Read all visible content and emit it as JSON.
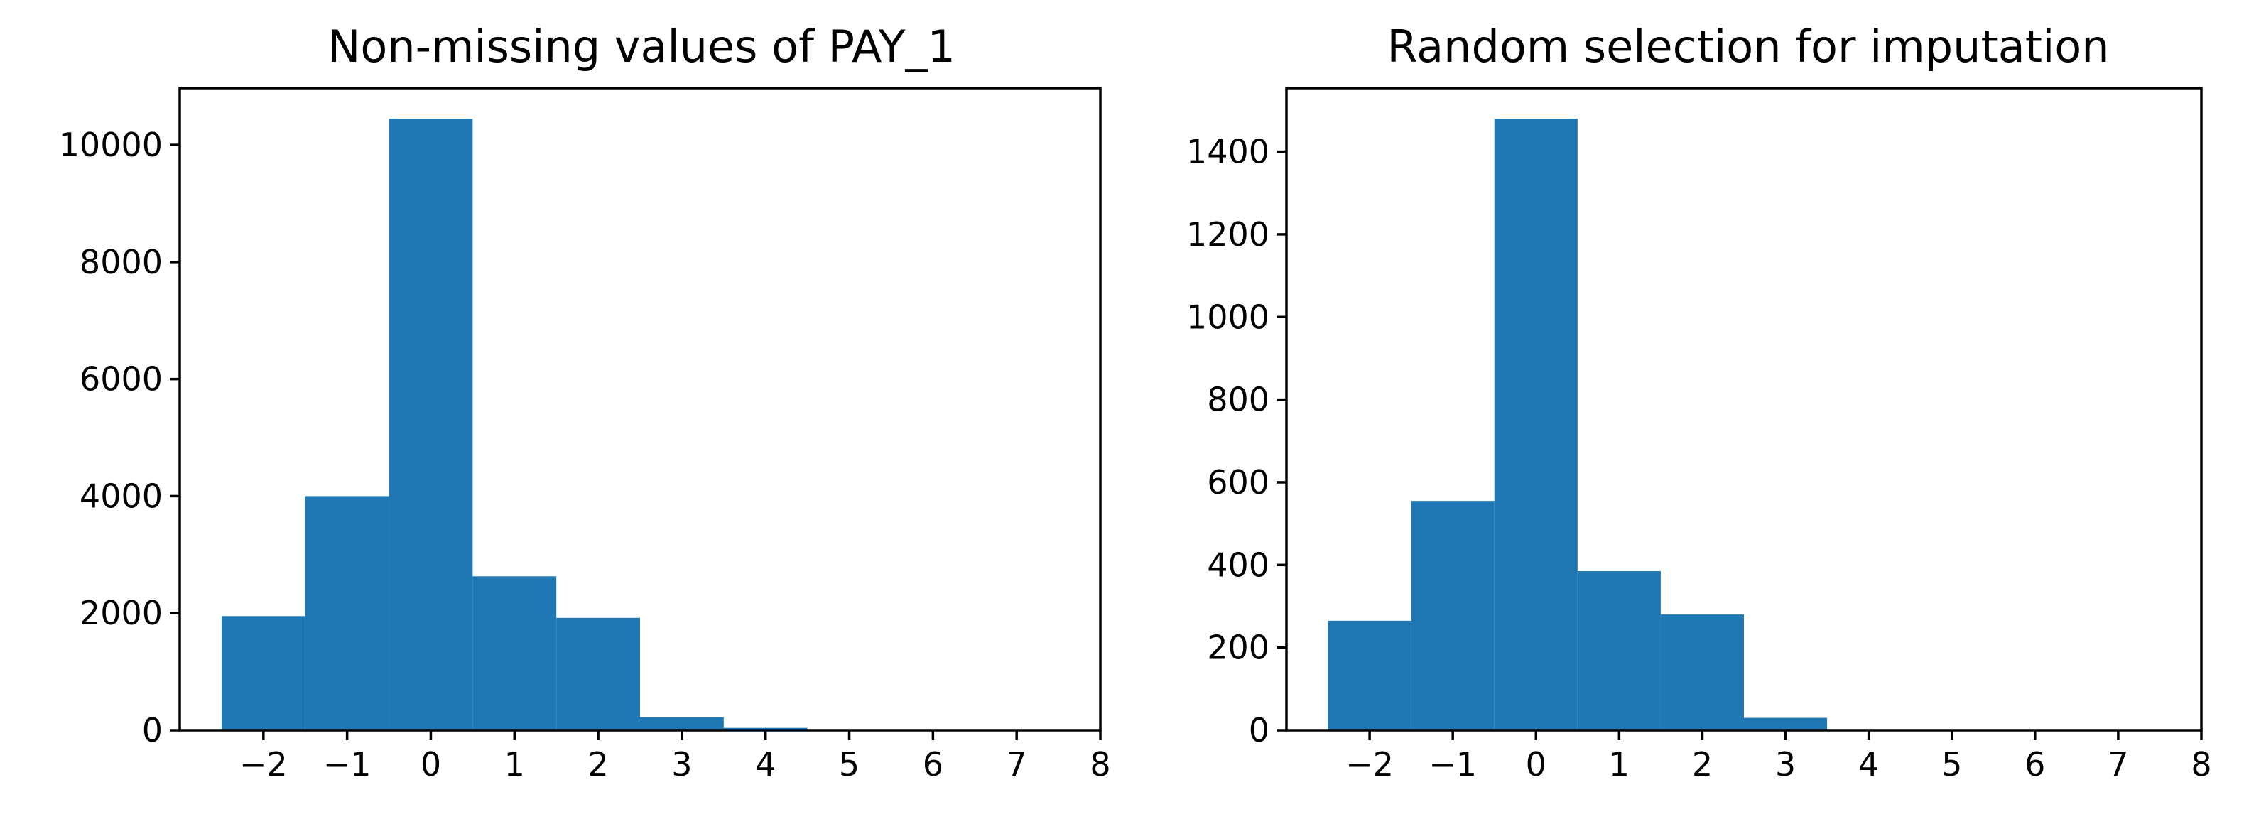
{
  "chart_data": [
    {
      "type": "bar",
      "title": "Non-missing values of PAY_1",
      "xlabel": "",
      "ylabel": "",
      "bins": [
        {
          "x0": -2.5,
          "x1": -1.5,
          "value": 1950
        },
        {
          "x0": -1.5,
          "x1": -0.5,
          "value": 4000
        },
        {
          "x0": -0.5,
          "x1": 0.5,
          "value": 10450
        },
        {
          "x0": 0.5,
          "x1": 1.5,
          "value": 2630
        },
        {
          "x0": 1.5,
          "x1": 2.5,
          "value": 1920
        },
        {
          "x0": 2.5,
          "x1": 3.5,
          "value": 220
        },
        {
          "x0": 3.5,
          "x1": 4.5,
          "value": 40
        },
        {
          "x0": 4.5,
          "x1": 5.5,
          "value": 10
        },
        {
          "x0": 5.5,
          "x1": 6.5,
          "value": 5
        },
        {
          "x0": 6.5,
          "x1": 7.5,
          "value": 3
        }
      ],
      "xlim": [
        -3.0,
        8.0
      ],
      "ylim": [
        0,
        10972
      ],
      "xticks": [
        -2,
        -1,
        0,
        1,
        2,
        3,
        4,
        5,
        6,
        7,
        8
      ],
      "xtick_labels": [
        "−2",
        "−1",
        "0",
        "1",
        "2",
        "3",
        "4",
        "5",
        "6",
        "7",
        "8"
      ],
      "yticks": [
        0,
        2000,
        4000,
        6000,
        8000,
        10000
      ],
      "ytick_labels": [
        "0",
        "2000",
        "4000",
        "6000",
        "8000",
        "10000"
      ],
      "bar_color": "#1f77b4",
      "grid": false,
      "legend": "none"
    },
    {
      "type": "bar",
      "title": "Random selection for imputation",
      "xlabel": "",
      "ylabel": "",
      "bins": [
        {
          "x0": -2.5,
          "x1": -1.5,
          "value": 265
        },
        {
          "x0": -1.5,
          "x1": -0.5,
          "value": 555
        },
        {
          "x0": -0.5,
          "x1": 0.5,
          "value": 1480
        },
        {
          "x0": 0.5,
          "x1": 1.5,
          "value": 385
        },
        {
          "x0": 1.5,
          "x1": 2.5,
          "value": 280
        },
        {
          "x0": 2.5,
          "x1": 3.5,
          "value": 30
        }
      ],
      "xlim": [
        -3.0,
        8.0
      ],
      "ylim": [
        0,
        1554
      ],
      "xticks": [
        -2,
        -1,
        0,
        1,
        2,
        3,
        4,
        5,
        6,
        7,
        8
      ],
      "xtick_labels": [
        "−2",
        "−1",
        "0",
        "1",
        "2",
        "3",
        "4",
        "5",
        "6",
        "7",
        "8"
      ],
      "yticks": [
        0,
        200,
        400,
        600,
        800,
        1000,
        1200,
        1400
      ],
      "ytick_labels": [
        "0",
        "200",
        "400",
        "600",
        "800",
        "1000",
        "1200",
        "1400"
      ],
      "bar_color": "#1f77b4",
      "grid": false,
      "legend": "none"
    }
  ]
}
